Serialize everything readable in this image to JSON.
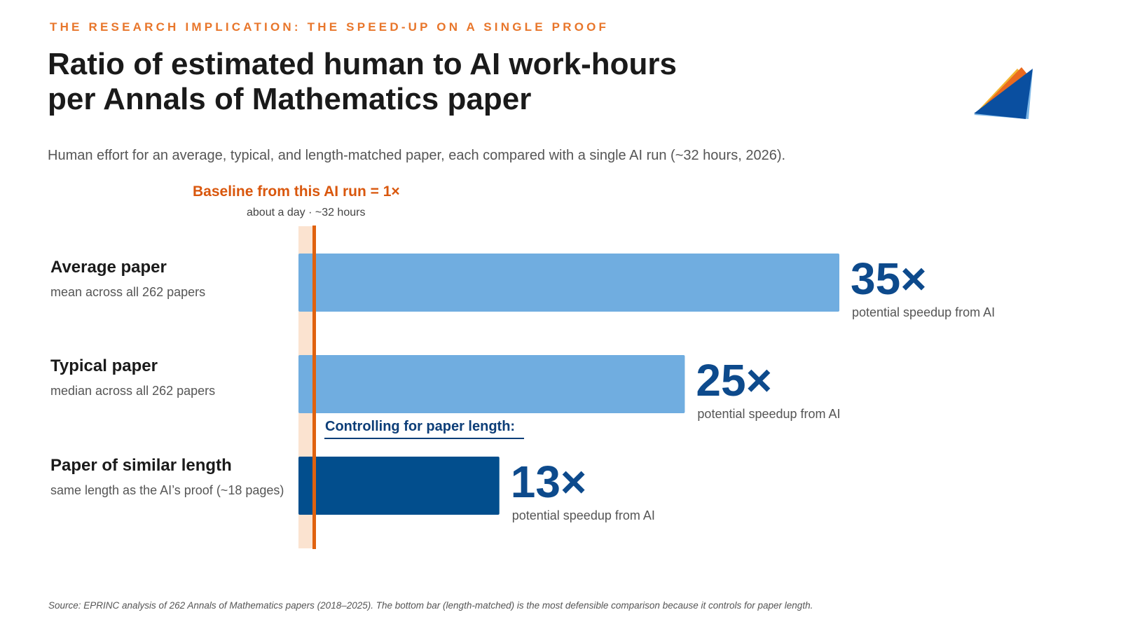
{
  "header": {
    "eyebrow": "THE RESEARCH IMPLICATION: THE SPEED-UP ON A SINGLE PROOF",
    "title_line1": "Ratio of estimated human to AI work-hours",
    "title_line2": "per Annals of Mathematics paper",
    "subtitle": "Human effort for an average, typical, and length-matched paper, each compared with a single AI run (~32 hours, 2026)."
  },
  "baseline": {
    "title": "Baseline from this AI run  =  1×",
    "subtitle": "about a day · ~32 hours"
  },
  "rows": [
    {
      "label": "Average paper",
      "desc": "mean across all 262 papers"
    },
    {
      "label": "Typical paper",
      "desc": "median across all 262 papers"
    },
    {
      "label": "Paper of similar length",
      "desc": "same length as the AI’s proof (~18 pages)"
    }
  ],
  "control_label": "Controlling for paper length:",
  "footer": "Source: EPRINC analysis of 262 Annals of Mathematics papers (2018–2025). The bottom bar (length-matched) is the most defensible comparison because it controls for paper length.",
  "colors": {
    "accent_orange": "#e8762b",
    "baseline_orange": "#e0620f",
    "bar_light": "#70ade0",
    "bar_dark": "#024e8d",
    "value_text": "#0d4a8c"
  },
  "chart_data": {
    "type": "bar",
    "orientation": "horizontal",
    "categories": [
      "Average paper",
      "Typical paper",
      "Paper of similar length"
    ],
    "values": [
      35,
      25,
      13
    ],
    "value_labels": [
      "35×",
      "25×",
      "13×"
    ],
    "value_sublabel": "potential speedup from AI",
    "baseline_value": 1,
    "xlim": [
      0,
      35
    ],
    "grid": false,
    "legend": "none"
  }
}
